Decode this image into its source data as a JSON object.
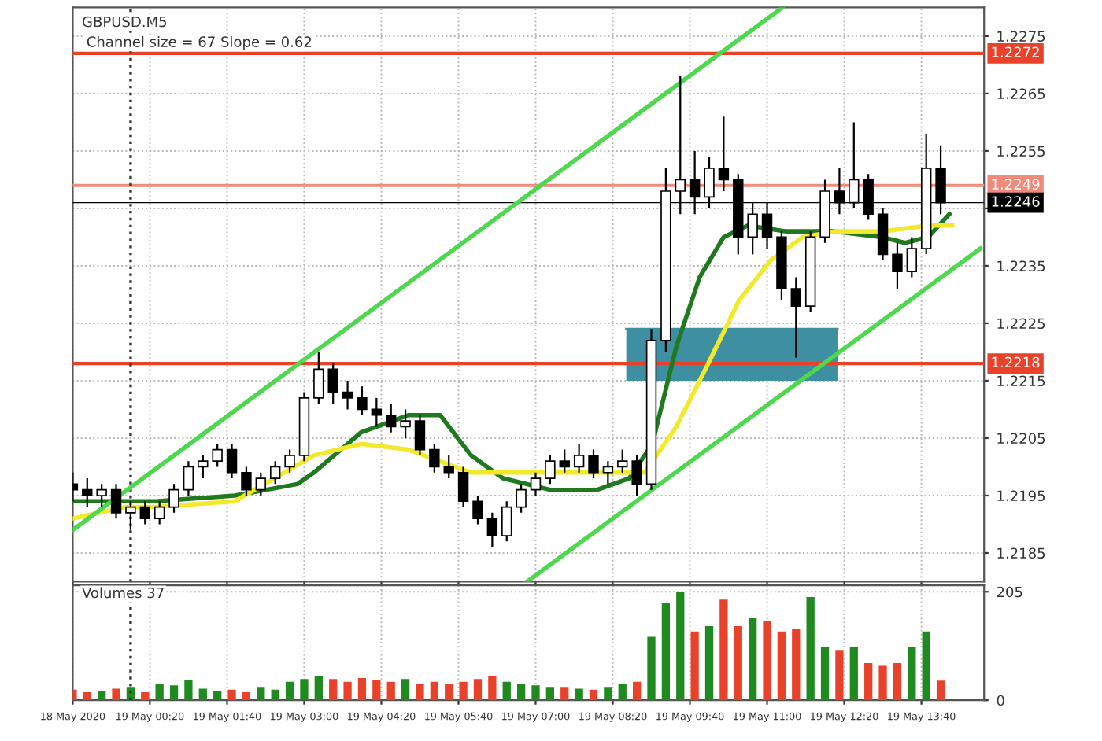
{
  "chart_data": [
    {
      "type": "candlestick",
      "title": "GBPUSD.M5",
      "subtitle": "Channel size = 67 Slope = 0.62",
      "x": [
        "2020-05-18T23:00",
        "2020-05-18T23:15",
        "2020-05-18T23:30",
        "2020-05-18T23:45",
        "2020-05-19T00:00",
        "2020-05-19T00:15",
        "2020-05-19T00:30",
        "2020-05-19T00:45",
        "2020-05-19T01:00",
        "2020-05-19T01:15",
        "2020-05-19T01:30",
        "2020-05-19T01:45",
        "2020-05-19T02:00",
        "2020-05-19T02:15",
        "2020-05-19T02:30",
        "2020-05-19T02:45",
        "2020-05-19T03:00",
        "2020-05-19T03:15",
        "2020-05-19T03:30",
        "2020-05-19T03:45",
        "2020-05-19T04:00",
        "2020-05-19T04:15",
        "2020-05-19T04:30",
        "2020-05-19T04:45",
        "2020-05-19T05:00",
        "2020-05-19T05:15",
        "2020-05-19T05:30",
        "2020-05-19T05:45",
        "2020-05-19T06:00",
        "2020-05-19T06:15",
        "2020-05-19T06:30",
        "2020-05-19T06:45",
        "2020-05-19T07:00",
        "2020-05-19T07:15",
        "2020-05-19T07:30",
        "2020-05-19T07:45",
        "2020-05-19T08:00",
        "2020-05-19T08:15",
        "2020-05-19T08:30",
        "2020-05-19T08:45",
        "2020-05-19T09:00",
        "2020-05-19T09:15",
        "2020-05-19T09:30",
        "2020-05-19T09:45",
        "2020-05-19T10:00",
        "2020-05-19T10:15",
        "2020-05-19T10:30",
        "2020-05-19T10:45",
        "2020-05-19T11:00",
        "2020-05-19T11:15",
        "2020-05-19T11:30",
        "2020-05-19T11:45",
        "2020-05-19T12:00",
        "2020-05-19T12:15",
        "2020-05-19T12:30",
        "2020-05-19T12:45",
        "2020-05-19T13:00",
        "2020-05-19T13:15",
        "2020-05-19T13:30",
        "2020-05-19T13:45",
        "2020-05-19T14:00"
      ],
      "ohlc": [
        [
          1.2197,
          1.2199,
          1.2194,
          1.2196
        ],
        [
          1.2196,
          1.2198,
          1.2193,
          1.2195
        ],
        [
          1.2195,
          1.2197,
          1.2193,
          1.2196
        ],
        [
          1.2196,
          1.2197,
          1.2191,
          1.2192
        ],
        [
          1.2192,
          1.2194,
          1.2189,
          1.2193
        ],
        [
          1.2193,
          1.2194,
          1.219,
          1.2191
        ],
        [
          1.2191,
          1.2194,
          1.219,
          1.2193
        ],
        [
          1.2193,
          1.2197,
          1.2192,
          1.2196
        ],
        [
          1.2196,
          1.2201,
          1.2195,
          1.22
        ],
        [
          1.22,
          1.2202,
          1.2198,
          1.2201
        ],
        [
          1.2201,
          1.2204,
          1.22,
          1.2203
        ],
        [
          1.2203,
          1.2204,
          1.2198,
          1.2199
        ],
        [
          1.2199,
          1.22,
          1.2195,
          1.2196
        ],
        [
          1.2196,
          1.2199,
          1.2195,
          1.2198
        ],
        [
          1.2198,
          1.2201,
          1.2197,
          1.22
        ],
        [
          1.22,
          1.2203,
          1.2199,
          1.2202
        ],
        [
          1.2202,
          1.2213,
          1.2201,
          1.2212
        ],
        [
          1.2212,
          1.222,
          1.2211,
          1.2217
        ],
        [
          1.2217,
          1.2218,
          1.2211,
          1.2213
        ],
        [
          1.2213,
          1.2215,
          1.221,
          1.2212
        ],
        [
          1.2212,
          1.2214,
          1.2209,
          1.221
        ],
        [
          1.221,
          1.2212,
          1.2207,
          1.2209
        ],
        [
          1.2209,
          1.2211,
          1.2206,
          1.2207
        ],
        [
          1.2207,
          1.221,
          1.2205,
          1.2208
        ],
        [
          1.2208,
          1.2209,
          1.2202,
          1.2203
        ],
        [
          1.2203,
          1.2204,
          1.2199,
          1.22
        ],
        [
          1.22,
          1.2202,
          1.2198,
          1.2199
        ],
        [
          1.2199,
          1.22,
          1.2193,
          1.2194
        ],
        [
          1.2194,
          1.2195,
          1.219,
          1.2191
        ],
        [
          1.2191,
          1.2192,
          1.2186,
          1.2188
        ],
        [
          1.2188,
          1.2194,
          1.2187,
          1.2193
        ],
        [
          1.2193,
          1.2197,
          1.2192,
          1.2196
        ],
        [
          1.2196,
          1.2199,
          1.2195,
          1.2198
        ],
        [
          1.2198,
          1.2202,
          1.2197,
          1.2201
        ],
        [
          1.2201,
          1.2203,
          1.2199,
          1.22
        ],
        [
          1.22,
          1.2204,
          1.2199,
          1.2202
        ],
        [
          1.2202,
          1.2203,
          1.2198,
          1.2199
        ],
        [
          1.2199,
          1.2201,
          1.2197,
          1.22
        ],
        [
          1.22,
          1.2203,
          1.2199,
          1.2201
        ],
        [
          1.2201,
          1.2202,
          1.2195,
          1.2197
        ],
        [
          1.2197,
          1.2224,
          1.2196,
          1.2222
        ],
        [
          1.2222,
          1.2252,
          1.222,
          1.2248
        ],
        [
          1.2248,
          1.2268,
          1.2244,
          1.225
        ],
        [
          1.225,
          1.2255,
          1.2244,
          1.2247
        ],
        [
          1.2247,
          1.2254,
          1.2245,
          1.2252
        ],
        [
          1.2252,
          1.2261,
          1.2248,
          1.225
        ],
        [
          1.225,
          1.2251,
          1.2237,
          1.224
        ],
        [
          1.224,
          1.2246,
          1.2237,
          1.2244
        ],
        [
          1.2244,
          1.2246,
          1.2238,
          1.224
        ],
        [
          1.224,
          1.2241,
          1.2229,
          1.2231
        ],
        [
          1.2231,
          1.2233,
          1.2219,
          1.2228
        ],
        [
          1.2228,
          1.2241,
          1.2227,
          1.224
        ],
        [
          1.224,
          1.225,
          1.2239,
          1.2248
        ],
        [
          1.2248,
          1.2252,
          1.2244,
          1.2246
        ],
        [
          1.2246,
          1.226,
          1.2245,
          1.225
        ],
        [
          1.225,
          1.2251,
          1.2243,
          1.2244
        ],
        [
          1.2244,
          1.2245,
          1.2236,
          1.2237
        ],
        [
          1.2237,
          1.2239,
          1.2231,
          1.2234
        ],
        [
          1.2234,
          1.224,
          1.2233,
          1.2238
        ],
        [
          1.2238,
          1.2258,
          1.2237,
          1.2252
        ],
        [
          1.2252,
          1.2256,
          1.2244,
          1.2246
        ]
      ],
      "series": [
        {
          "type": "line",
          "color": "#3f8fa3",
          "x": [
            "2020-05-19T08:34",
            "2020-05-19T12:13"
          ],
          "values": [
            1.2224,
            1.2224
          ],
          "lower": [
            1.2215,
            1.2215
          ],
          "upper": [
            1.2224,
            1.2224
          ]
        },
        {
          "type": "line",
          "color": "#1f7a1f",
          "x": [
            "2020-05-18T23:00",
            "2020-05-19T00:26",
            "2020-05-19T01:48",
            "2020-05-19T02:53",
            "2020-05-19T03:10",
            "2020-05-19T03:59",
            "2020-05-19T04:48",
            "2020-05-19T05:21",
            "2020-05-19T05:53",
            "2020-05-19T06:26",
            "2020-05-19T07:15",
            "2020-05-19T08:04",
            "2020-05-19T08:37",
            "2020-05-19T09:01",
            "2020-05-19T09:26",
            "2020-05-19T09:50",
            "2020-05-19T10:15",
            "2020-05-19T10:40",
            "2020-05-19T11:20",
            "2020-05-19T12:10",
            "2020-05-19T12:59",
            "2020-05-19T13:23",
            "2020-05-19T13:47",
            "2020-05-19T14:09"
          ],
          "values": [
            1.2194,
            1.2194,
            1.2195,
            1.2197,
            1.2199,
            1.2206,
            1.2209,
            1.2209,
            1.2202,
            1.2198,
            1.2196,
            1.2196,
            1.2198,
            1.2204,
            1.2221,
            1.2233,
            1.224,
            1.2242,
            1.2241,
            1.2241,
            1.224,
            1.2239,
            1.224,
            1.2244
          ]
        },
        {
          "type": "line",
          "color": "#f2e92a",
          "x": [
            "2020-05-18T23:00",
            "2020-05-18T23:54",
            "2020-05-19T00:26",
            "2020-05-19T01:48",
            "2020-05-19T03:10",
            "2020-05-19T03:59",
            "2020-05-19T04:48",
            "2020-05-19T05:53",
            "2020-05-19T06:59",
            "2020-05-19T08:04",
            "2020-05-19T08:53",
            "2020-05-19T09:26",
            "2020-05-19T09:59",
            "2020-05-19T10:31",
            "2020-05-19T11:04",
            "2020-05-19T11:37",
            "2020-05-19T12:10",
            "2020-05-19T12:59",
            "2020-05-19T13:47",
            "2020-05-19T14:12"
          ],
          "values": [
            1.2191,
            1.2193,
            1.2193,
            1.2194,
            1.2202,
            1.2204,
            1.2203,
            1.2199,
            1.2199,
            1.2199,
            1.2199,
            1.2207,
            1.2218,
            1.2229,
            1.2236,
            1.224,
            1.2241,
            1.2241,
            1.2242,
            1.2242
          ]
        },
        {
          "type": "line",
          "color": "#4fd84f",
          "x": [
            "2020-05-18T23:00",
            "2020-05-19T11:16"
          ],
          "values": [
            1.2189,
            1.228
          ]
        },
        {
          "type": "line",
          "color": "#4fd84f",
          "x": [
            "2020-05-19T06:51",
            "2020-05-19T14:41"
          ],
          "values": [
            1.218,
            1.2238
          ]
        }
      ],
      "ref_lines": [
        {
          "axis": "y",
          "value": 1.2272,
          "label": "1.2272",
          "color": "#e8432a"
        },
        {
          "axis": "y",
          "value": 1.2249,
          "label": "1.2249",
          "color": "#f08a7a"
        },
        {
          "axis": "y",
          "value": 1.2246,
          "label": "1.2246",
          "color": "#000000"
        },
        {
          "axis": "y",
          "value": 1.2218,
          "label": "1.2218",
          "color": "#e8432a"
        },
        {
          "axis": "x",
          "value": "2020-05-19T00:00",
          "label": null,
          "color": "#333333",
          "line_style": "dotted"
        }
      ],
      "xlim": [
        "2020-05-18T23:00",
        "2020-05-19T14:45"
      ],
      "ylim": [
        1.218,
        1.228
      ],
      "xticks": [
        {
          "value": "2020-05-18T23:00",
          "label": null
        },
        {
          "value": "2020-05-19T00:20",
          "label": null
        },
        {
          "value": "2020-05-19T01:40",
          "label": null
        },
        {
          "value": "2020-05-19T03:00",
          "label": null
        },
        {
          "value": "2020-05-19T04:20",
          "label": null
        },
        {
          "value": "2020-05-19T05:40",
          "label": null
        },
        {
          "value": "2020-05-19T07:00",
          "label": null
        },
        {
          "value": "2020-05-19T08:20",
          "label": null
        },
        {
          "value": "2020-05-19T09:40",
          "label": null
        },
        {
          "value": "2020-05-19T11:00",
          "label": null
        },
        {
          "value": "2020-05-19T12:20",
          "label": null
        },
        {
          "value": "2020-05-19T13:40",
          "label": null
        }
      ],
      "yticks": [
        1.2185,
        1.2195,
        1.2205,
        1.2215,
        1.2225,
        1.2235,
        {
          "value": 1.2245,
          "label": null
        },
        1.2255,
        1.2265,
        1.2275
      ],
      "tick_labels": "y",
      "grid": true
    },
    {
      "type": "bar",
      "title": "Volumes 37",
      "x": [
        "2020-05-18T23:00",
        "2020-05-18T23:15",
        "2020-05-18T23:30",
        "2020-05-18T23:45",
        "2020-05-19T00:00",
        "2020-05-19T00:15",
        "2020-05-19T00:30",
        "2020-05-19T00:45",
        "2020-05-19T01:00",
        "2020-05-19T01:15",
        "2020-05-19T01:30",
        "2020-05-19T01:45",
        "2020-05-19T02:00",
        "2020-05-19T02:15",
        "2020-05-19T02:30",
        "2020-05-19T02:45",
        "2020-05-19T03:00",
        "2020-05-19T03:15",
        "2020-05-19T03:30",
        "2020-05-19T03:45",
        "2020-05-19T04:00",
        "2020-05-19T04:15",
        "2020-05-19T04:30",
        "2020-05-19T04:45",
        "2020-05-19T05:00",
        "2020-05-19T05:15",
        "2020-05-19T05:30",
        "2020-05-19T05:45",
        "2020-05-19T06:00",
        "2020-05-19T06:15",
        "2020-05-19T06:30",
        "2020-05-19T06:45",
        "2020-05-19T07:00",
        "2020-05-19T07:15",
        "2020-05-19T07:30",
        "2020-05-19T07:45",
        "2020-05-19T08:00",
        "2020-05-19T08:15",
        "2020-05-19T08:30",
        "2020-05-19T08:45",
        "2020-05-19T09:00",
        "2020-05-19T09:15",
        "2020-05-19T09:30",
        "2020-05-19T09:45",
        "2020-05-19T10:00",
        "2020-05-19T10:15",
        "2020-05-19T10:30",
        "2020-05-19T10:45",
        "2020-05-19T11:00",
        "2020-05-19T11:15",
        "2020-05-19T11:30",
        "2020-05-19T11:45",
        "2020-05-19T12:00",
        "2020-05-19T12:15",
        "2020-05-19T12:30",
        "2020-05-19T12:45",
        "2020-05-19T13:00",
        "2020-05-19T13:15",
        "2020-05-19T13:30",
        "2020-05-19T13:45",
        "2020-05-19T14:00"
      ],
      "values": [
        20,
        15,
        18,
        22,
        25,
        15,
        30,
        28,
        38,
        22,
        18,
        20,
        15,
        25,
        20,
        35,
        40,
        45,
        40,
        35,
        42,
        38,
        35,
        40,
        30,
        35,
        30,
        35,
        40,
        45,
        35,
        30,
        28,
        25,
        25,
        22,
        20,
        25,
        30,
        35,
        120,
        183,
        205,
        130,
        140,
        190,
        140,
        155,
        150,
        130,
        135,
        195,
        100,
        95,
        100,
        70,
        65,
        70,
        100,
        130,
        37
      ],
      "colors": [
        "#e8432a",
        "#e8432a",
        "#1f8a1f",
        "#e8432a",
        "#1f8a1f",
        "#e8432a",
        "#1f8a1f",
        "#1f8a1f",
        "#1f8a1f",
        "#1f8a1f",
        "#1f8a1f",
        "#e8432a",
        "#e8432a",
        "#1f8a1f",
        "#1f8a1f",
        "#1f8a1f",
        "#1f8a1f",
        "#1f8a1f",
        "#e8432a",
        "#e8432a",
        "#e8432a",
        "#e8432a",
        "#e8432a",
        "#1f8a1f",
        "#e8432a",
        "#e8432a",
        "#e8432a",
        "#e8432a",
        "#e8432a",
        "#e8432a",
        "#1f8a1f",
        "#1f8a1f",
        "#1f8a1f",
        "#1f8a1f",
        "#e8432a",
        "#1f8a1f",
        "#e8432a",
        "#1f8a1f",
        "#1f8a1f",
        "#e8432a",
        "#1f8a1f",
        "#1f8a1f",
        "#1f8a1f",
        "#e8432a",
        "#1f8a1f",
        "#e8432a",
        "#e8432a",
        "#1f8a1f",
        "#e8432a",
        "#e8432a",
        "#e8432a",
        "#1f8a1f",
        "#1f8a1f",
        "#e8432a",
        "#1f8a1f",
        "#e8432a",
        "#e8432a",
        "#e8432a",
        "#1f8a1f",
        "#1f8a1f",
        "#e8432a"
      ],
      "ref_lines": [
        {
          "axis": "x",
          "value": "2020-05-19T00:00",
          "label": null,
          "color": "#333333",
          "line_style": "dotted"
        }
      ],
      "xlim": [
        "2020-05-18T23:00",
        "2020-05-19T14:45"
      ],
      "ylim": [
        0,
        217
      ],
      "xticks": [
        {
          "value": "2020-05-18T23:00",
          "label": "18 May 2020"
        },
        {
          "value": "2020-05-19T00:20",
          "label": "19 May 00:20"
        },
        {
          "value": "2020-05-19T01:40",
          "label": "19 May 01:40"
        },
        {
          "value": "2020-05-19T03:00",
          "label": "19 May 03:00"
        },
        {
          "value": "2020-05-19T04:20",
          "label": "19 May 04:20"
        },
        {
          "value": "2020-05-19T05:40",
          "label": "19 May 05:40"
        },
        {
          "value": "2020-05-19T07:00",
          "label": "19 May 07:00"
        },
        {
          "value": "2020-05-19T08:20",
          "label": "19 May 08:20"
        },
        {
          "value": "2020-05-19T09:40",
          "label": "19 May 09:40"
        },
        {
          "value": "2020-05-19T11:00",
          "label": "19 May 11:00"
        },
        {
          "value": "2020-05-19T12:20",
          "label": "19 May 12:20"
        },
        {
          "value": "2020-05-19T13:40",
          "label": "19 May 13:40"
        }
      ],
      "yticks": [
        0,
        205
      ],
      "grid": true
    }
  ]
}
